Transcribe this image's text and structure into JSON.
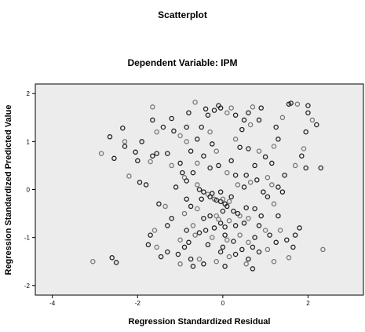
{
  "chart_data": {
    "type": "scatter",
    "title": "Scatterplot",
    "subtitle": "Dependent Variable: IPM",
    "xlabel": "Regression Standardized Residual",
    "ylabel": "Regression Standardized Predicted Value",
    "xlim": [
      -4.4,
      3.3
    ],
    "ylim": [
      -2.2,
      2.2
    ],
    "xticks": [
      -4,
      -2,
      0,
      2
    ],
    "yticks": [
      -2,
      -1,
      0,
      1,
      2
    ],
    "grid": false,
    "plot_background": "#ececec",
    "marker": "open-circle",
    "points": [
      [
        -3.05,
        -1.5
      ],
      [
        -2.6,
        -1.42
      ],
      [
        -2.5,
        -1.52
      ],
      [
        -2.85,
        0.75
      ],
      [
        -2.65,
        1.1
      ],
      [
        -2.55,
        0.65
      ],
      [
        -2.3,
        1.0
      ],
      [
        -2.35,
        1.28
      ],
      [
        -2.05,
        0.78
      ],
      [
        -2.2,
        0.28
      ],
      [
        -2.3,
        0.9
      ],
      [
        -1.95,
        0.15
      ],
      [
        -1.65,
        1.72
      ],
      [
        -1.65,
        1.45
      ],
      [
        -1.4,
        1.3
      ],
      [
        -1.55,
        1.2
      ],
      [
        -1.2,
        1.48
      ],
      [
        -1.15,
        1.22
      ],
      [
        -1.0,
        1.12
      ],
      [
        -0.85,
        1.3
      ],
      [
        -0.8,
        1.6
      ],
      [
        -0.85,
        1.0
      ],
      [
        -1.3,
        0.75
      ],
      [
        -1.0,
        0.55
      ],
      [
        -1.2,
        0.5
      ],
      [
        -1.55,
        0.75
      ],
      [
        -1.65,
        0.7
      ],
      [
        -1.7,
        0.58
      ],
      [
        -1.8,
        0.1
      ],
      [
        -1.5,
        -0.3
      ],
      [
        -1.35,
        -0.35
      ],
      [
        -1.1,
        0.05
      ],
      [
        -0.95,
        0.35
      ],
      [
        -0.9,
        0.25
      ],
      [
        -0.85,
        0.18
      ],
      [
        -0.7,
        0.35
      ],
      [
        -0.6,
        0.1
      ],
      [
        -0.55,
        0.0
      ],
      [
        -0.45,
        -0.05
      ],
      [
        -0.35,
        -0.1
      ],
      [
        -0.3,
        -0.15
      ],
      [
        -0.25,
        -0.08
      ],
      [
        -0.2,
        -0.2
      ],
      [
        -0.15,
        -0.22
      ],
      [
        -0.05,
        -0.25
      ],
      [
        0.0,
        -0.2
      ],
      [
        0.05,
        -0.3
      ],
      [
        0.1,
        -0.35
      ],
      [
        0.15,
        -0.25
      ],
      [
        0.25,
        -0.45
      ],
      [
        0.35,
        -0.5
      ],
      [
        0.4,
        -0.55
      ],
      [
        0.55,
        -0.38
      ],
      [
        0.75,
        -0.4
      ],
      [
        0.6,
        -0.6
      ],
      [
        0.5,
        -0.7
      ],
      [
        0.3,
        -0.75
      ],
      [
        0.15,
        -0.65
      ],
      [
        0.05,
        -0.78
      ],
      [
        -0.05,
        -0.7
      ],
      [
        -0.15,
        -0.55
      ],
      [
        -0.3,
        -0.55
      ],
      [
        -0.45,
        -0.6
      ],
      [
        -0.6,
        -0.4
      ],
      [
        -0.75,
        -0.35
      ],
      [
        -0.85,
        -0.2
      ],
      [
        -0.9,
        -0.5
      ],
      [
        -1.2,
        -0.6
      ],
      [
        -1.3,
        -0.75
      ],
      [
        -1.6,
        -0.85
      ],
      [
        -1.7,
        -0.95
      ],
      [
        -1.75,
        -1.15
      ],
      [
        -1.55,
        -1.2
      ],
      [
        -1.45,
        -1.4
      ],
      [
        -1.3,
        -1.3
      ],
      [
        -1.0,
        -1.05
      ],
      [
        -0.9,
        -1.2
      ],
      [
        -1.05,
        -1.35
      ],
      [
        -1.0,
        -1.55
      ],
      [
        -0.75,
        -1.45
      ],
      [
        -0.7,
        -1.6
      ],
      [
        -0.55,
        -1.45
      ],
      [
        -0.45,
        -1.55
      ],
      [
        -0.35,
        -1.15
      ],
      [
        -0.25,
        -1.0
      ],
      [
        -0.4,
        -0.85
      ],
      [
        -0.55,
        -0.9
      ],
      [
        -0.65,
        -0.95
      ],
      [
        -0.2,
        -0.8
      ],
      [
        0.05,
        -0.95
      ],
      [
        0.1,
        -1.05
      ],
      [
        0.0,
        -1.2
      ],
      [
        -0.05,
        -1.3
      ],
      [
        0.15,
        -1.4
      ],
      [
        0.3,
        -1.35
      ],
      [
        0.45,
        -1.25
      ],
      [
        0.6,
        -1.1
      ],
      [
        0.75,
        -1.0
      ],
      [
        0.85,
        -0.75
      ],
      [
        1.0,
        -0.85
      ],
      [
        1.1,
        -0.95
      ],
      [
        1.25,
        -1.1
      ],
      [
        1.05,
        -1.25
      ],
      [
        0.85,
        -1.3
      ],
      [
        0.6,
        -1.45
      ],
      [
        0.55,
        -1.55
      ],
      [
        0.7,
        -1.2
      ],
      [
        1.3,
        -0.55
      ],
      [
        1.2,
        -0.3
      ],
      [
        1.05,
        -0.15
      ],
      [
        0.95,
        -0.05
      ],
      [
        1.15,
        0.1
      ],
      [
        1.3,
        0.05
      ],
      [
        1.4,
        -0.05
      ],
      [
        1.35,
        -0.85
      ],
      [
        1.5,
        -1.05
      ],
      [
        1.65,
        -1.2
      ],
      [
        1.55,
        -1.42
      ],
      [
        1.8,
        -0.8
      ],
      [
        1.7,
        -0.95
      ],
      [
        0.2,
        1.7
      ],
      [
        0.3,
        1.55
      ],
      [
        0.5,
        1.45
      ],
      [
        0.65,
        1.35
      ],
      [
        0.85,
        1.45
      ],
      [
        0.9,
        1.7
      ],
      [
        0.7,
        1.72
      ],
      [
        0.6,
        1.6
      ],
      [
        0.45,
        1.25
      ],
      [
        0.3,
        1.05
      ],
      [
        0.4,
        0.88
      ],
      [
        0.6,
        0.85
      ],
      [
        0.85,
        0.8
      ],
      [
        1.0,
        0.68
      ],
      [
        1.15,
        0.55
      ],
      [
        1.2,
        0.9
      ],
      [
        1.3,
        1.05
      ],
      [
        1.25,
        1.3
      ],
      [
        1.4,
        1.5
      ],
      [
        1.55,
        1.78
      ],
      [
        1.6,
        1.8
      ],
      [
        1.75,
        1.78
      ],
      [
        2.0,
        1.75
      ],
      [
        2.0,
        1.6
      ],
      [
        2.1,
        1.45
      ],
      [
        1.95,
        1.2
      ],
      [
        2.2,
        1.35
      ],
      [
        1.9,
        0.85
      ],
      [
        1.95,
        0.45
      ],
      [
        2.3,
        0.45
      ],
      [
        2.35,
        -1.25
      ],
      [
        -0.1,
        1.75
      ],
      [
        -0.05,
        1.7
      ],
      [
        0.1,
        1.6
      ],
      [
        -0.2,
        1.65
      ],
      [
        -0.4,
        1.68
      ],
      [
        -0.65,
        1.82
      ],
      [
        -0.35,
        1.55
      ],
      [
        -0.5,
        1.3
      ],
      [
        -0.3,
        1.2
      ],
      [
        -0.6,
        1.05
      ],
      [
        -0.25,
        0.95
      ],
      [
        -0.15,
        0.8
      ],
      [
        -0.45,
        0.7
      ],
      [
        -0.75,
        0.8
      ],
      [
        -0.6,
        0.55
      ],
      [
        -0.3,
        0.45
      ],
      [
        -0.1,
        0.5
      ],
      [
        0.1,
        0.35
      ],
      [
        0.3,
        0.3
      ],
      [
        0.55,
        0.3
      ],
      [
        0.65,
        0.15
      ],
      [
        0.8,
        0.2
      ],
      [
        0.75,
        0.5
      ],
      [
        1.05,
        0.25
      ],
      [
        0.2,
        0.6
      ],
      [
        0.9,
        -0.55
      ],
      [
        0.4,
        -0.95
      ],
      [
        0.25,
        -1.08
      ],
      [
        0.0,
        -0.45
      ],
      [
        -0.1,
        -0.62
      ],
      [
        0.2,
        -0.15
      ],
      [
        -0.05,
        -0.05
      ],
      [
        0.35,
        0.1
      ],
      [
        0.5,
        0.05
      ],
      [
        1.45,
        0.3
      ],
      [
        1.7,
        0.5
      ],
      [
        1.85,
        0.7
      ],
      [
        -0.5,
        -0.2
      ],
      [
        -0.7,
        -0.75
      ],
      [
        -0.85,
        -0.85
      ],
      [
        -0.8,
        -1.1
      ],
      [
        -0.15,
        -1.5
      ],
      [
        0.05,
        -1.6
      ],
      [
        0.7,
        -1.65
      ],
      [
        1.2,
        -1.5
      ],
      [
        -1.9,
        1.0
      ],
      [
        -2.0,
        0.6
      ]
    ]
  }
}
